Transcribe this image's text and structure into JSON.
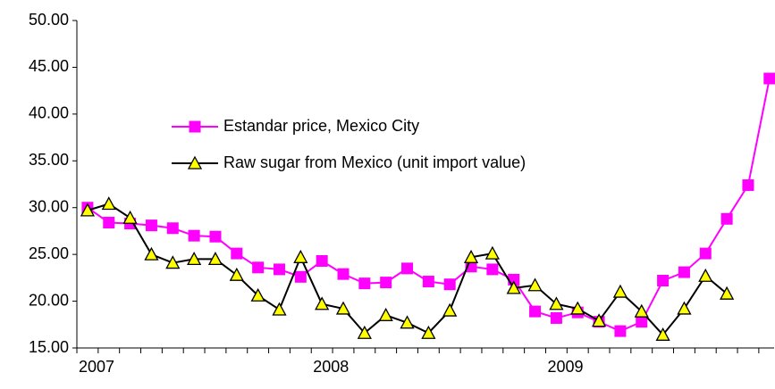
{
  "chart_data": {
    "type": "line",
    "categories": [
      "2007",
      null,
      null,
      null,
      null,
      null,
      null,
      null,
      null,
      null,
      null,
      "2008",
      null,
      null,
      null,
      null,
      null,
      null,
      null,
      null,
      null,
      null,
      "2009",
      null,
      null,
      null,
      null,
      null,
      null,
      null,
      null,
      null,
      null
    ],
    "series": [
      {
        "name": "Estandar price, Mexico City",
        "color": "#ff00ff",
        "marker": "square",
        "marker_fill": "#ff00ff",
        "values": [
          30.0,
          28.4,
          28.3,
          28.1,
          27.8,
          27.0,
          26.9,
          25.1,
          23.6,
          23.4,
          22.6,
          24.3,
          22.9,
          21.9,
          22.0,
          23.5,
          22.1,
          21.8,
          23.7,
          23.4,
          22.3,
          18.9,
          18.2,
          18.8,
          17.8,
          16.8,
          17.8,
          22.2,
          23.1,
          25.1,
          28.8,
          32.4,
          43.8
        ]
      },
      {
        "name": "Raw sugar from Mexico (unit import value)",
        "color": "#000000",
        "marker": "triangle",
        "marker_fill": "#ffff00",
        "values": [
          29.7,
          30.4,
          28.9,
          25.0,
          24.1,
          24.5,
          24.5,
          22.8,
          20.6,
          19.1,
          24.7,
          19.7,
          19.2,
          16.6,
          18.5,
          17.7,
          16.6,
          19.0,
          24.7,
          25.1,
          21.4,
          21.7,
          19.7,
          19.2,
          17.9,
          21.0,
          18.9,
          16.4,
          19.2,
          22.7,
          20.8,
          null,
          null
        ]
      }
    ],
    "ylim": [
      15,
      50
    ],
    "yticks": [
      {
        "value": 15,
        "label": "15.00"
      },
      {
        "value": 20,
        "label": "20.00"
      },
      {
        "value": 25,
        "label": "25.00"
      },
      {
        "value": 30,
        "label": "30.00"
      },
      {
        "value": 35,
        "label": "35.00"
      },
      {
        "value": 40,
        "label": "40.00"
      },
      {
        "value": 45,
        "label": "45.00"
      },
      {
        "value": 50,
        "label": "50.00"
      }
    ],
    "grid": false,
    "legend": "upper-left"
  }
}
